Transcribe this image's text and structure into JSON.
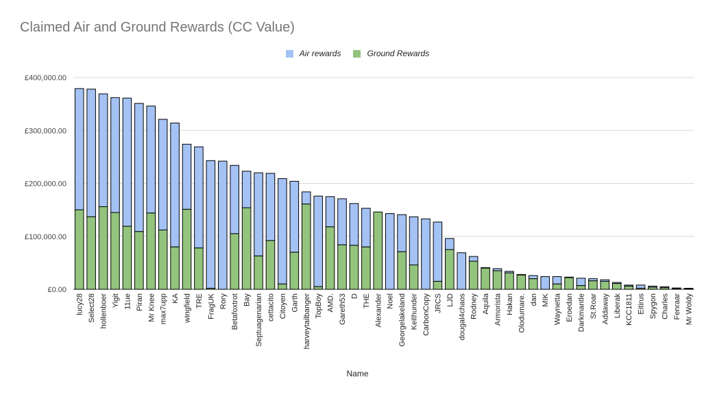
{
  "chart_data": {
    "type": "bar",
    "stacked": true,
    "title": "Claimed Air and Ground Rewards (CC Value)",
    "xlabel": "Name",
    "ylabel": "",
    "ylim": [
      0,
      400000
    ],
    "yticks": [
      "£0.00",
      "£100,000.00",
      "£200,000.00",
      "£300,000.00",
      "£400,000.00"
    ],
    "ytick_values": [
      0,
      100000,
      200000,
      300000,
      400000
    ],
    "legend_position": "top",
    "grid": true,
    "categories": [
      "lucy28",
      "Select28",
      "hollenboer",
      "Yigit",
      "11ue",
      "Piran",
      "Mr Knee",
      "max7upp",
      "KA",
      "wingfield",
      "TRE",
      "FragUK",
      "Rory",
      "Betafoxtrot",
      "Bay",
      "Septuagenarian",
      "cettacito",
      "Citoyen",
      "Garth",
      "harveytailbanger",
      "TopBoy",
      "AMD.",
      "Gareth53",
      "D",
      "THE",
      "Alexander",
      "Noel",
      "Georgelakeland",
      "Keithunder",
      "CarbonCopy",
      "JRCS",
      "LJD",
      "dougal4chaos",
      "Rodney",
      "Aquila",
      "Armorista",
      "Hakan",
      "Olodumare.",
      "dan",
      "MIK",
      "Waynetta",
      "Eroedan",
      "Darkmantle",
      "St.Roar",
      "Addaway",
      "Liberak",
      "KCC1811",
      "Eitirus",
      "Spygon",
      "Charles",
      "Fenraar",
      "Mr Woldy"
    ],
    "series": [
      {
        "name": "Ground Rewards",
        "color": "#93c47d",
        "values": [
          150000,
          137000,
          156000,
          145000,
          119000,
          109000,
          144000,
          112000,
          80000,
          151000,
          78000,
          2000,
          0,
          105000,
          154000,
          63000,
          92000,
          10000,
          70000,
          161000,
          5000,
          118000,
          84000,
          83000,
          80000,
          146000,
          0,
          71000,
          46000,
          0,
          15000,
          75000,
          0,
          53000,
          40000,
          35000,
          31000,
          27000,
          20000,
          0,
          10000,
          22000,
          7000,
          16000,
          15000,
          11000,
          6000,
          2000,
          4000,
          3000,
          1500,
          1000
        ]
      },
      {
        "name": "Air rewards",
        "color": "#a4c2f4",
        "values": [
          229000,
          241000,
          213000,
          217000,
          242000,
          242000,
          202000,
          209000,
          234000,
          123000,
          191000,
          241000,
          242000,
          129000,
          69000,
          157000,
          127000,
          199000,
          134000,
          23000,
          171000,
          57000,
          87000,
          79000,
          73000,
          0,
          143000,
          70000,
          91000,
          133000,
          112000,
          21000,
          69000,
          9000,
          1000,
          4000,
          3000,
          1000,
          6000,
          24000,
          14000,
          1000,
          14000,
          4000,
          3000,
          2000,
          2000,
          6000,
          2000,
          2000,
          1000,
          1000
        ]
      }
    ]
  }
}
